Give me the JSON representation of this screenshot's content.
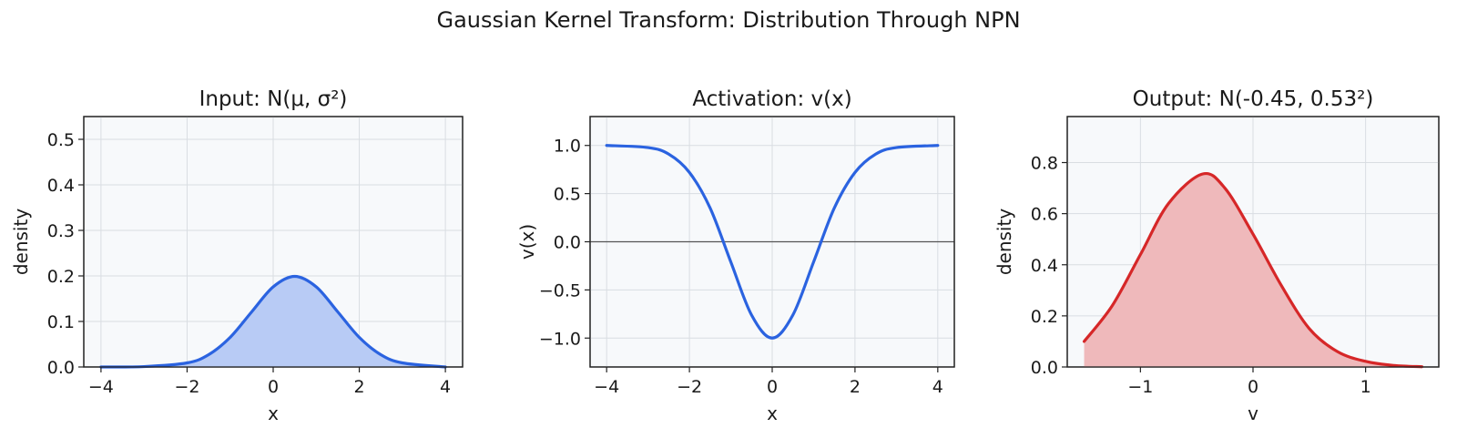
{
  "figure": {
    "title": "Gaussian Kernel Transform: Distribution Through NPN"
  },
  "chart_data": [
    {
      "type": "area",
      "title": "Input: N(μ, σ²)",
      "xlabel": "x",
      "ylabel": "density",
      "xlim": [
        -4.4,
        4.4
      ],
      "ylim": [
        0.0,
        0.55
      ],
      "xticks": [
        -4,
        -2,
        0,
        2,
        4
      ],
      "xtick_labels": [
        "−4",
        "−2",
        "0",
        "2",
        "4"
      ],
      "yticks": [
        0.0,
        0.1,
        0.2,
        0.3,
        0.4,
        0.5
      ],
      "ytick_labels": [
        "0.0",
        "0.1",
        "0.2",
        "0.3",
        "0.4",
        "0.5"
      ],
      "grid": true,
      "series": [
        {
          "color": "#2b63e0",
          "fill": "#b8cbf5",
          "x": [
            -4.0,
            -3.0,
            -2.0,
            -1.5,
            -1.0,
            -0.5,
            0.0,
            0.5,
            1.0,
            1.5,
            2.0,
            2.5,
            3.0,
            4.0
          ],
          "y": [
            0.0,
            0.0009,
            0.009,
            0.027,
            0.065,
            0.121,
            0.176,
            0.199,
            0.176,
            0.121,
            0.065,
            0.027,
            0.009,
            0.0
          ]
        }
      ]
    },
    {
      "type": "line",
      "title": "Activation: v(x)",
      "xlabel": "x",
      "ylabel": "v(x)",
      "xlim": [
        -4.4,
        4.4
      ],
      "ylim": [
        -1.3,
        1.3
      ],
      "xticks": [
        -4,
        -2,
        0,
        2,
        4
      ],
      "xtick_labels": [
        "−4",
        "−2",
        "0",
        "2",
        "4"
      ],
      "yticks": [
        -1.0,
        -0.5,
        0.0,
        0.5,
        1.0
      ],
      "ytick_labels": [
        "−1.0",
        "−0.5",
        "0.0",
        "0.5",
        "1.0"
      ],
      "grid": true,
      "hline": 0.0,
      "series": [
        {
          "color": "#2b63e0",
          "x": [
            -4.0,
            -3.0,
            -2.5,
            -2.0,
            -1.5,
            -1.0,
            -0.5,
            0.0,
            0.5,
            1.0,
            1.5,
            2.0,
            2.5,
            3.0,
            4.0
          ],
          "y": [
            1.0,
            0.978,
            0.91,
            0.72,
            0.35,
            -0.21,
            -0.76,
            -1.0,
            -0.76,
            -0.21,
            0.35,
            0.72,
            0.91,
            0.978,
            1.0
          ]
        }
      ]
    },
    {
      "type": "area",
      "title": "Output: N(-0.45, 0.53²)",
      "xlabel": "v",
      "ylabel": "density",
      "xlim": [
        -1.65,
        1.65
      ],
      "ylim": [
        0.0,
        0.98
      ],
      "xticks": [
        -1,
        0,
        1
      ],
      "xtick_labels": [
        "−1",
        "0",
        "1"
      ],
      "yticks": [
        0.0,
        0.2,
        0.4,
        0.6,
        0.8
      ],
      "ytick_labels": [
        "0.0",
        "0.2",
        "0.4",
        "0.6",
        "0.8"
      ],
      "grid": true,
      "series": [
        {
          "color": "#d62728",
          "fill": "#efb9bb",
          "x": [
            -1.5,
            -1.25,
            -1.0,
            -0.75,
            -0.45,
            -0.25,
            0.0,
            0.25,
            0.5,
            0.75,
            1.0,
            1.25,
            1.5
          ],
          "y": [
            0.1,
            0.24,
            0.44,
            0.64,
            0.755,
            0.7,
            0.52,
            0.32,
            0.15,
            0.06,
            0.022,
            0.006,
            0.001
          ]
        }
      ]
    }
  ]
}
